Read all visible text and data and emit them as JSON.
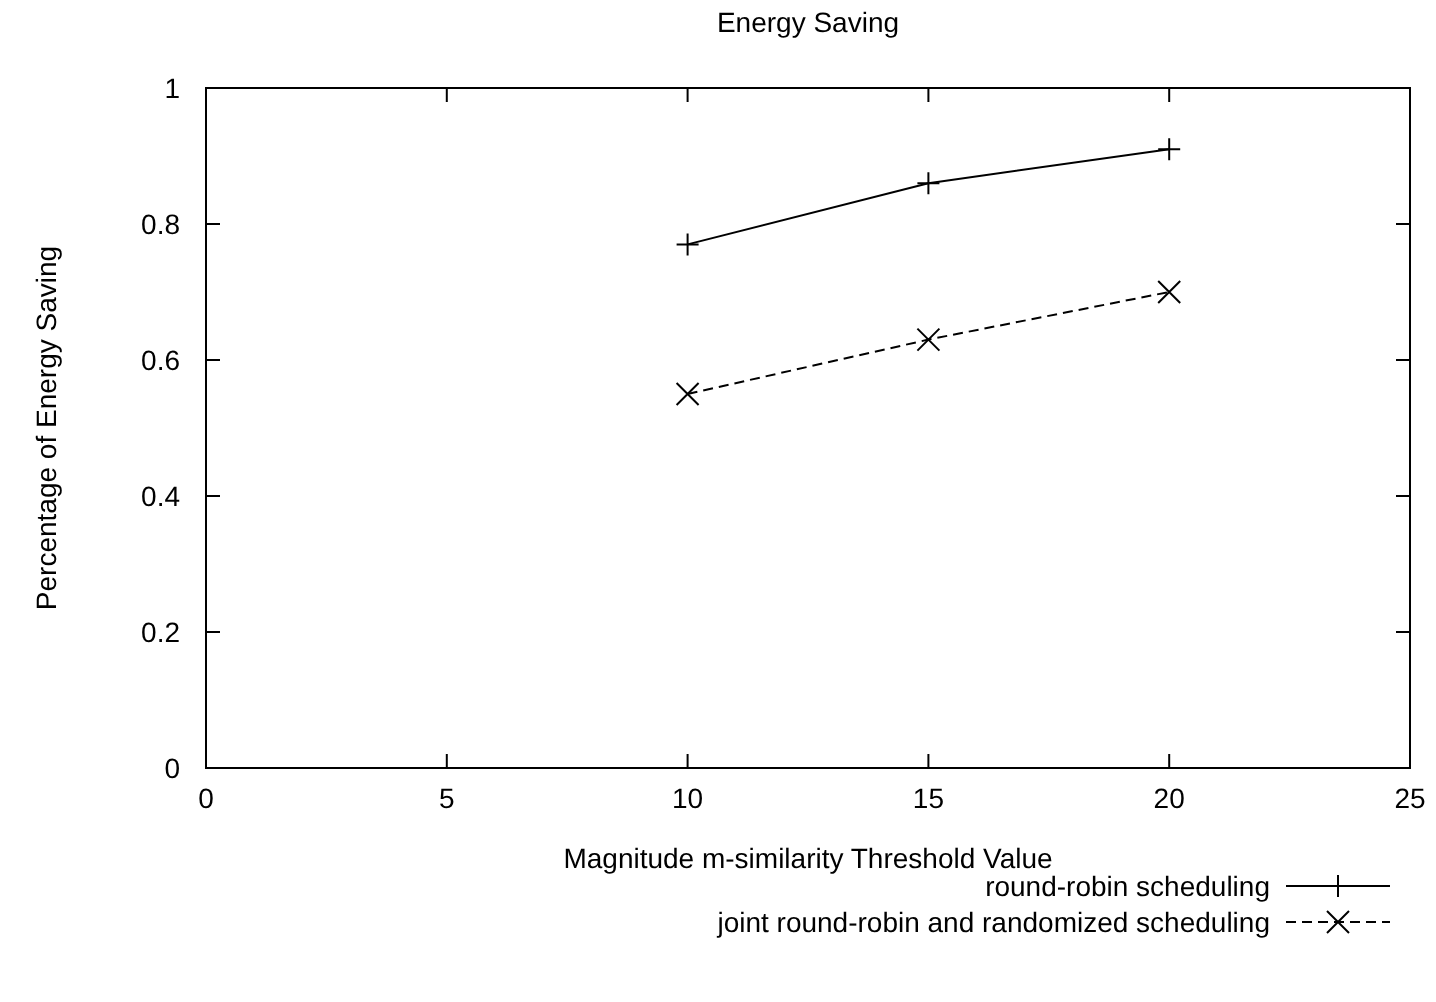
{
  "chart_data": {
    "type": "line",
    "title": "Energy Saving",
    "xlabel": "Magnitude m-similarity Threshold Value",
    "ylabel": "Percentage of Energy Saving",
    "x": [
      10,
      15,
      20
    ],
    "series": [
      {
        "name": "round-robin scheduling",
        "color": "#000000",
        "values": [
          0.77,
          0.86,
          0.91
        ],
        "marker": "cross",
        "line_style": "solid"
      },
      {
        "name": "joint round-robin and randomized scheduling",
        "color": "#000000",
        "values": [
          0.55,
          0.63,
          0.7
        ],
        "marker": "x",
        "line_style": "dashed"
      }
    ],
    "xlim": [
      0,
      25
    ],
    "xticks": [
      0,
      5,
      10,
      15,
      20,
      25
    ],
    "ylim": [
      0,
      1
    ],
    "yticks": [
      0,
      0.2,
      0.4,
      0.6,
      0.8,
      1
    ],
    "grid": false,
    "legend": "bottom right"
  }
}
